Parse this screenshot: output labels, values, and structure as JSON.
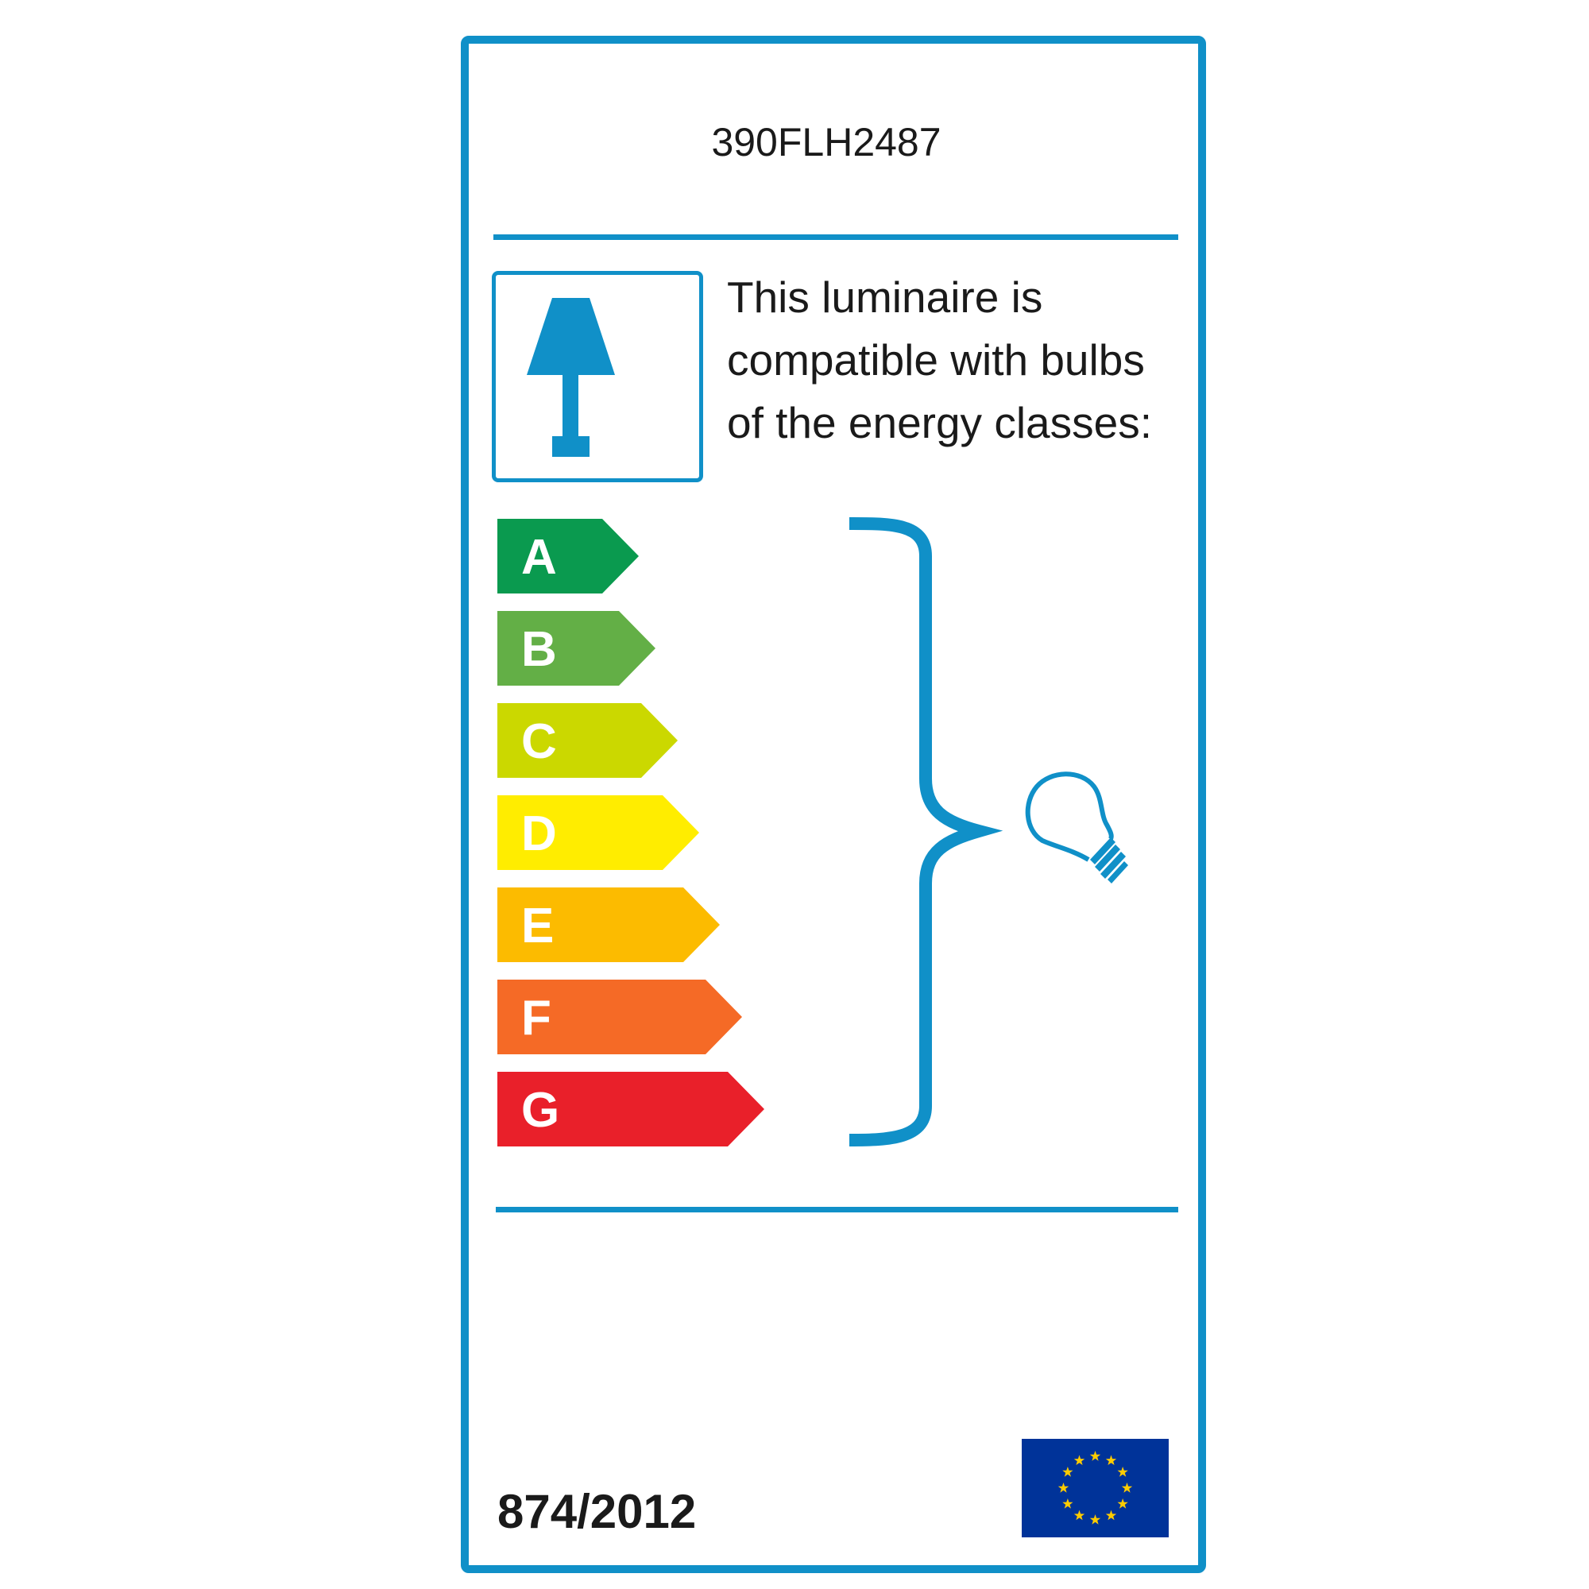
{
  "label": {
    "model": "390FLH2487",
    "compatibility_text": [
      "This luminaire is",
      "compatible with bulbs",
      "of the energy classes:"
    ],
    "regulation": "874/2012"
  },
  "energy_classes": [
    {
      "letter": "A",
      "color": "#0a9a4f"
    },
    {
      "letter": "B",
      "color": "#63af46"
    },
    {
      "letter": "C",
      "color": "#cbd800"
    },
    {
      "letter": "D",
      "color": "#ffed00"
    },
    {
      "letter": "E",
      "color": "#fcbb00"
    },
    {
      "letter": "F",
      "color": "#f56a26"
    },
    {
      "letter": "G",
      "color": "#e9202a"
    }
  ],
  "icons": [
    "table-lamp-icon",
    "light-bulb-icon",
    "curly-brace",
    "eu-flag-icon"
  ],
  "colors": {
    "frame": "#1090c8",
    "flag_blue": "#003399",
    "flag_star": "#ffcc00"
  }
}
